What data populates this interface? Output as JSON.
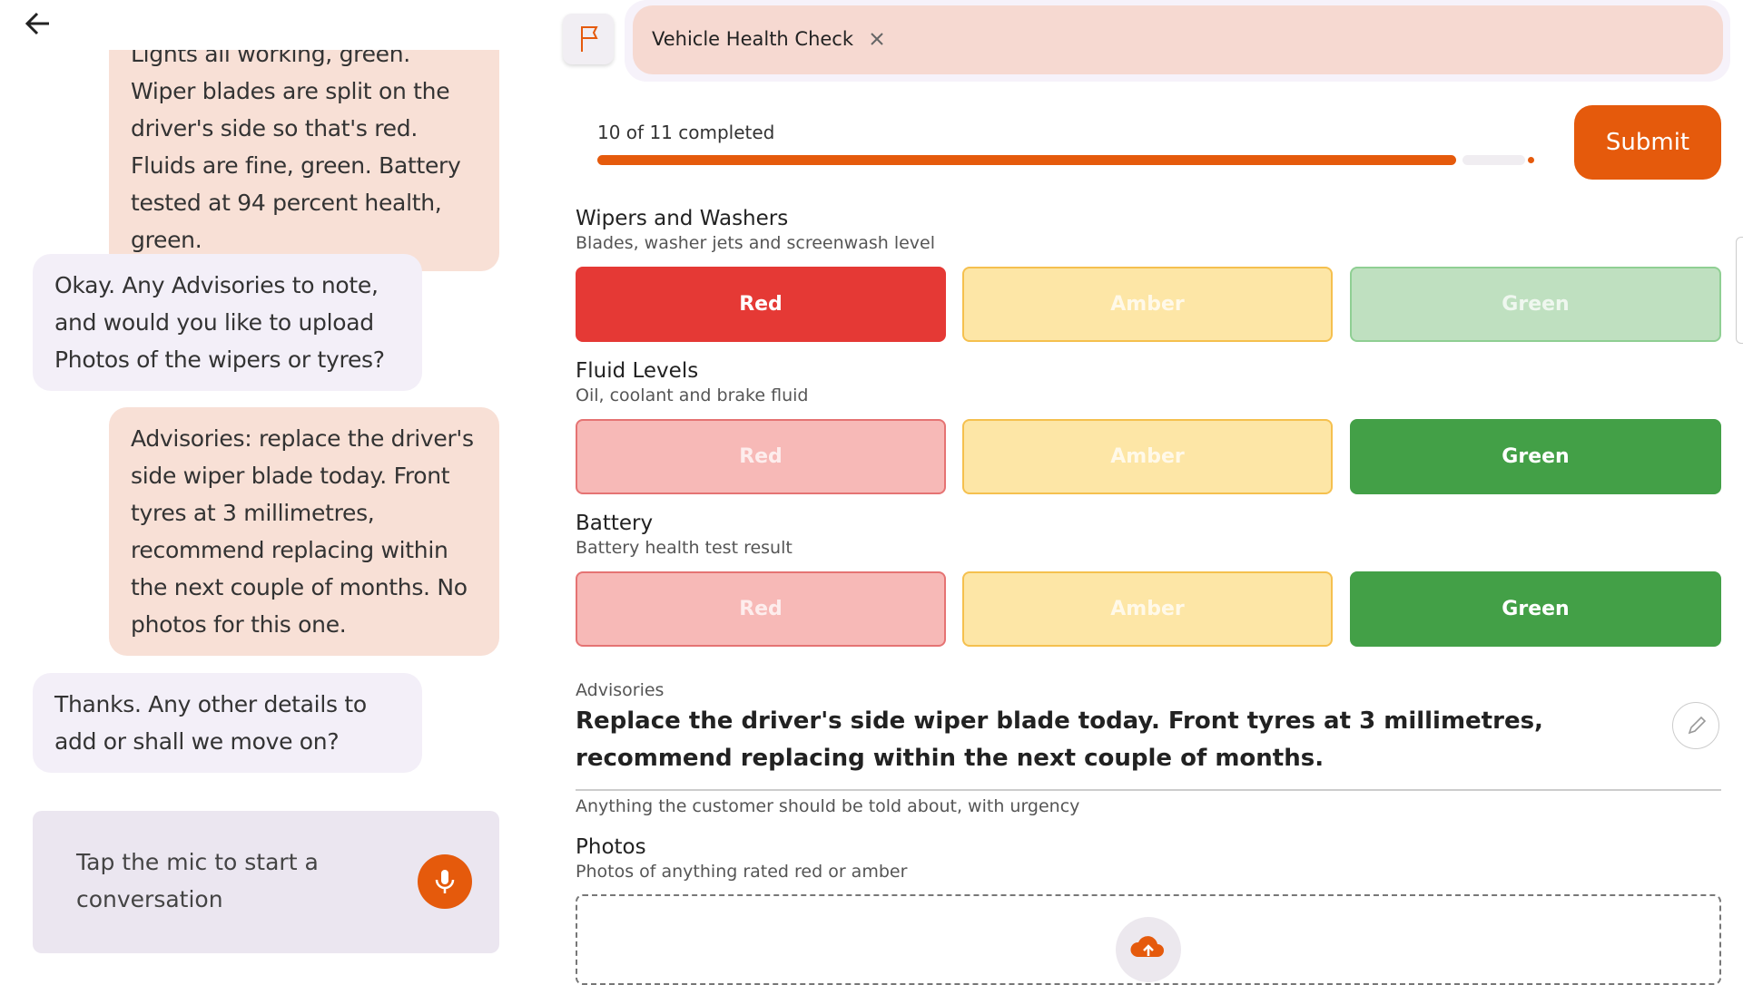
{
  "chat": {
    "messages": [
      {
        "role": "user",
        "text": "Lights all working, green. Wiper blades are split on the driver's side so that's red. Fluids are fine, green. Battery tested at 94 percent health, green."
      },
      {
        "role": "agent",
        "text": "Okay. Any Advisories to note, and would you like to upload Photos of the wipers or tyres?"
      },
      {
        "role": "user",
        "text": "Advisories: replace the driver's side wiper blade today. Front tyres at 3 millimetres, recommend replacing within the next couple of months. No photos for this one."
      },
      {
        "role": "agent",
        "text": "Thanks. Any other details to add or shall we move on?"
      }
    ],
    "input_placeholder": "Tap the mic to start a conversation"
  },
  "tab": {
    "title": "Vehicle Health Check"
  },
  "progress": {
    "label": "10 of 11 completed"
  },
  "submit": "Submit",
  "sections": [
    {
      "title": "Wipers and Washers",
      "subtitle": "Blades, washer jets and screenwash level",
      "options": [
        "Red",
        "Amber",
        "Green"
      ],
      "selected": 0
    },
    {
      "title": "Fluid Levels",
      "subtitle": "Oil, coolant and brake fluid",
      "options": [
        "Red",
        "Amber",
        "Green"
      ],
      "selected": 2
    },
    {
      "title": "Battery",
      "subtitle": "Battery health test result",
      "options": [
        "Red",
        "Amber",
        "Green"
      ],
      "selected": 2
    }
  ],
  "advisories": {
    "label": "Advisories",
    "text": "Replace the driver's side wiper blade today. Front tyres at 3 millimetres, recommend replacing within the next couple of months.",
    "helper": "Anything the customer should be told about, with urgency"
  },
  "photos": {
    "title": "Photos",
    "subtitle": "Photos of anything rated red or amber"
  }
}
